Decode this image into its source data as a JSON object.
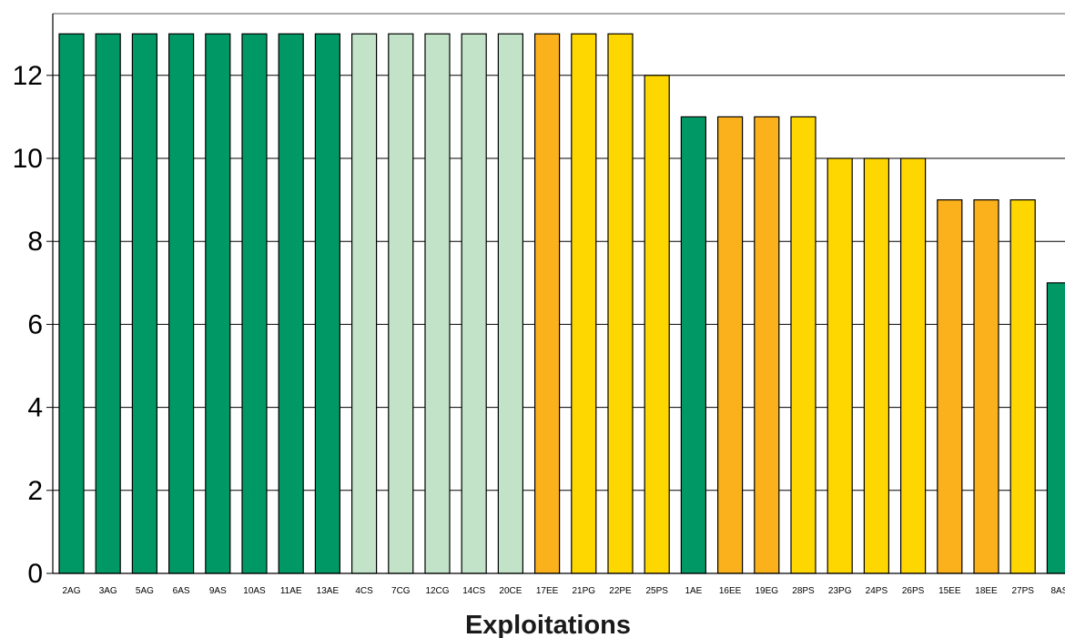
{
  "chart_data": {
    "type": "bar",
    "title": "",
    "xlabel": "Exploitations",
    "ylabel": "",
    "ylim": [
      0,
      13
    ],
    "yticks": [
      0,
      2,
      4,
      6,
      8,
      10,
      12
    ],
    "grid": "horizontal",
    "categories": [
      "2AG",
      "3AG",
      "5AG",
      "6AS",
      "9AS",
      "10AS",
      "11AE",
      "13AE",
      "4CS",
      "7CG",
      "12CG",
      "14CS",
      "20CE",
      "17EE",
      "21PG",
      "22PE",
      "25PS",
      "1AE",
      "16EE",
      "19EG",
      "28PS",
      "23PG",
      "24PS",
      "26PS",
      "15EE",
      "18EE",
      "27PS",
      "8AS"
    ],
    "values": [
      13,
      13,
      13,
      13,
      13,
      13,
      13,
      13,
      13,
      13,
      13,
      13,
      13,
      13,
      13,
      13,
      12,
      11,
      11,
      11,
      11,
      10,
      10,
      10,
      9,
      9,
      9,
      7
    ],
    "colors": [
      "#009966",
      "#009966",
      "#009966",
      "#009966",
      "#009966",
      "#009966",
      "#009966",
      "#009966",
      "#c2e3c8",
      "#c2e3c8",
      "#c2e3c8",
      "#c2e3c8",
      "#c2e3c8",
      "#fbb11c",
      "#ffd700",
      "#ffd700",
      "#ffd700",
      "#009966",
      "#fbb11c",
      "#fbb11c",
      "#ffd700",
      "#ffd700",
      "#ffd700",
      "#ffd700",
      "#fbb11c",
      "#fbb11c",
      "#ffd700",
      "#009966"
    ]
  }
}
